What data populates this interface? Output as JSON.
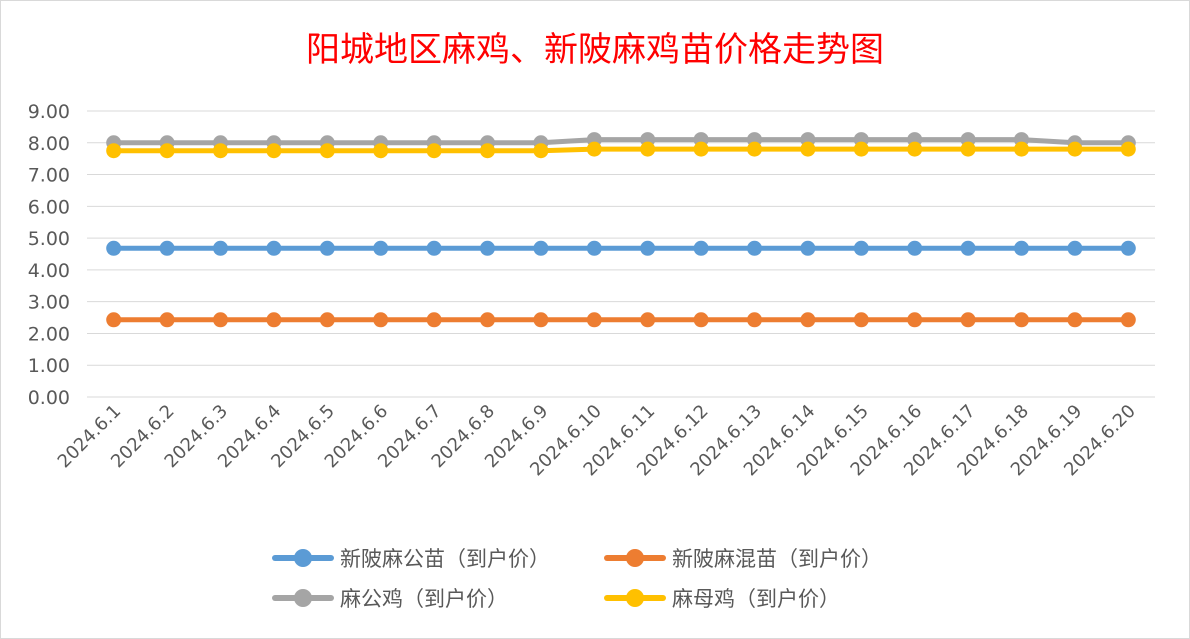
{
  "title": "阳城地区麻鸡、新陂麻鸡苗价格走势图",
  "chart_data": {
    "type": "line",
    "title": "阳城地区麻鸡、新陂麻鸡苗价格走势图",
    "categories": [
      "2024.6.1",
      "2024.6.2",
      "2024.6.3",
      "2024.6.4",
      "2024.6.5",
      "2024.6.6",
      "2024.6.7",
      "2024.6.8",
      "2024.6.9",
      "2024.6.10",
      "2024.6.11",
      "2024.6.12",
      "2024.6.13",
      "2024.6.14",
      "2024.6.15",
      "2024.6.16",
      "2024.6.17",
      "2024.6.18",
      "2024.6.19",
      "2024.6.20"
    ],
    "yticks": [
      "0.00",
      "1.00",
      "2.00",
      "3.00",
      "4.00",
      "5.00",
      "6.00",
      "7.00",
      "8.00",
      "9.00"
    ],
    "ylim": [
      0,
      9
    ],
    "grid": true,
    "legend_position": "bottom",
    "series": [
      {
        "name": "新陂麻公苗（到户价）",
        "color": "#5b9bd5",
        "values": [
          4.68,
          4.68,
          4.68,
          4.68,
          4.68,
          4.68,
          4.68,
          4.68,
          4.68,
          4.68,
          4.68,
          4.68,
          4.68,
          4.68,
          4.68,
          4.68,
          4.68,
          4.68,
          4.68,
          4.68
        ]
      },
      {
        "name": "新陂麻混苗（到户价）",
        "color": "#ed7d31",
        "values": [
          2.43,
          2.43,
          2.43,
          2.43,
          2.43,
          2.43,
          2.43,
          2.43,
          2.43,
          2.43,
          2.43,
          2.43,
          2.43,
          2.43,
          2.43,
          2.43,
          2.43,
          2.43,
          2.43,
          2.43
        ]
      },
      {
        "name": "麻公鸡（到户价）",
        "color": "#a5a5a5",
        "values": [
          8.0,
          8.0,
          8.0,
          8.0,
          8.0,
          8.0,
          8.0,
          8.0,
          8.0,
          8.1,
          8.1,
          8.1,
          8.1,
          8.1,
          8.1,
          8.1,
          8.1,
          8.1,
          8.0,
          8.0
        ]
      },
      {
        "name": "麻母鸡（到户价）",
        "color": "#ffc000",
        "values": [
          7.75,
          7.75,
          7.75,
          7.75,
          7.75,
          7.75,
          7.75,
          7.75,
          7.75,
          7.8,
          7.8,
          7.8,
          7.8,
          7.8,
          7.8,
          7.8,
          7.8,
          7.8,
          7.8,
          7.8
        ]
      }
    ]
  }
}
